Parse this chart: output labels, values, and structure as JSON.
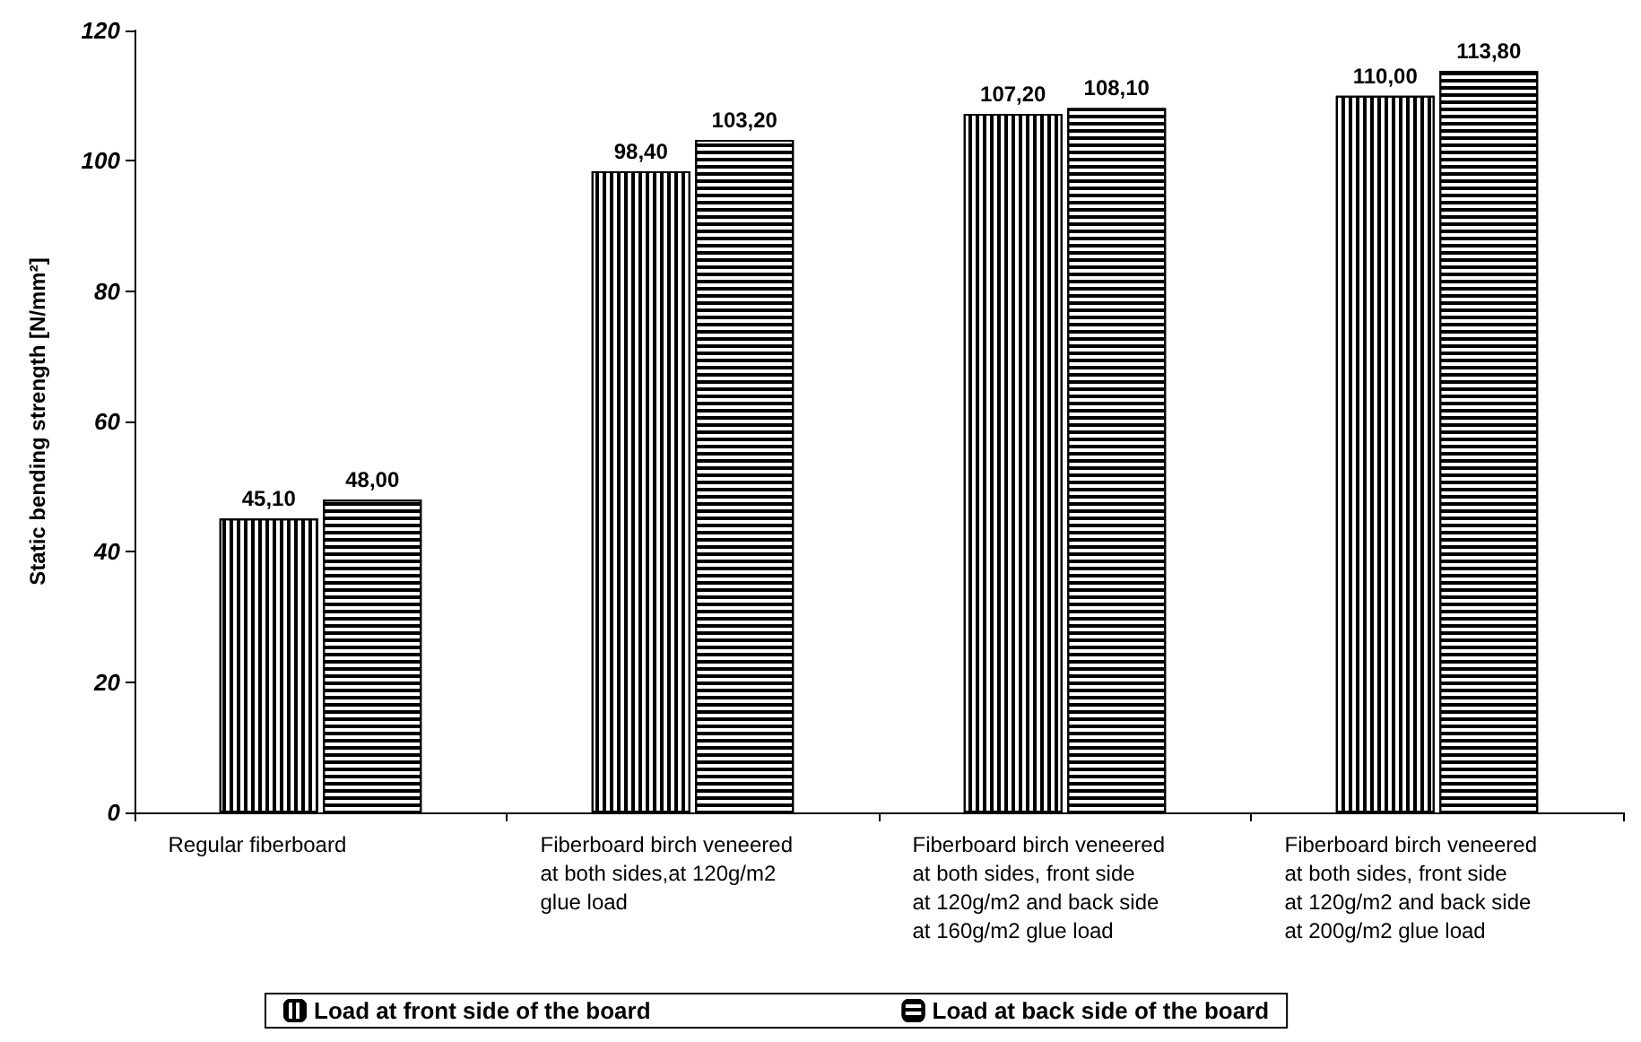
{
  "chart_data": {
    "type": "bar",
    "ylabel": "Static bending strength [N/mm²]",
    "categories": [
      "Regular fiberboard",
      "Fiberboard birch veneered\nat both sides,at 120g/m2\nglue load",
      "Fiberboard birch veneered\nat both sides, front side\nat 120g/m2 and back side\nat 160g/m2 glue load",
      "Fiberboard birch veneered\nat both sides, front side\nat 120g/m2 and back side\nat 200g/m2 glue load"
    ],
    "series": [
      {
        "name": "Load at front side of the board",
        "color": "#000000",
        "values": [
          45.1,
          98.4,
          107.2,
          110.0
        ],
        "value_labels": [
          "45,10",
          "98,40",
          "107,20",
          "110,00"
        ]
      },
      {
        "name": "Load at back side of the board",
        "color": "#000000",
        "values": [
          48.0,
          103.2,
          108.1,
          113.8
        ],
        "value_labels": [
          "48,00",
          "103,20",
          "108,10",
          "113,80"
        ]
      }
    ],
    "ylim": [
      0,
      120
    ],
    "yticks": [
      0,
      20,
      40,
      60,
      80,
      100,
      120
    ],
    "grid": false,
    "legend": "bottom"
  }
}
